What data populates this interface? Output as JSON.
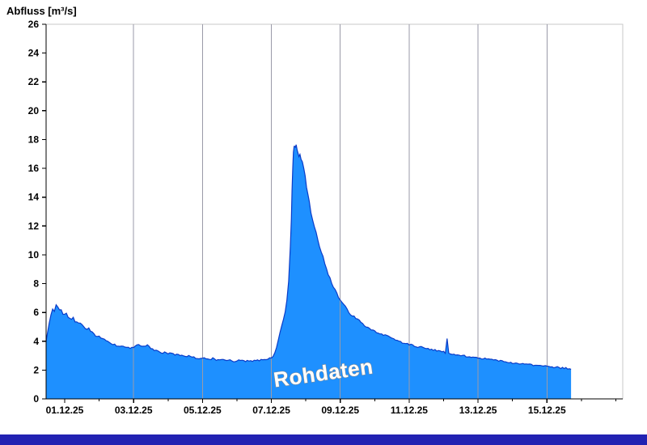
{
  "window": {
    "background": "#ffffff",
    "bottom_bar_color": "#2222b2"
  },
  "chart_data": {
    "type": "area",
    "title": "Abfluss [m³/s]",
    "watermark": "Rohdaten",
    "ylabel": "Abfluss [m³/s]",
    "xlabel": "",
    "ylim": [
      0,
      26
    ],
    "y_ticks": [
      0,
      2,
      4,
      6,
      8,
      10,
      12,
      14,
      16,
      18,
      20,
      22,
      24,
      26
    ],
    "x_domain": [
      0.46,
      17.2
    ],
    "x_ticks": [
      {
        "day": 1,
        "label": "01.12.25"
      },
      {
        "day": 3,
        "label": "03.12.25"
      },
      {
        "day": 5,
        "label": "05.12.25"
      },
      {
        "day": 7,
        "label": "07.12.25"
      },
      {
        "day": 9,
        "label": "09.12.25"
      },
      {
        "day": 11,
        "label": "11.12.25"
      },
      {
        "day": 13,
        "label": "13.12.25"
      },
      {
        "day": 15,
        "label": "15.12.25"
      }
    ],
    "grid": "vertical-only",
    "legend_position": "none",
    "colors": {
      "fill": "#1e90ff",
      "line": "#0a3cc8",
      "grid": "#9a9aa8",
      "frame": "#c9c9c9",
      "axis": "#000000",
      "watermark_fill": "#ffffff",
      "watermark_stroke": "#8c8c8c"
    },
    "series": {
      "name": "Abfluss Rohdaten",
      "unit": "m³/s",
      "points": [
        [
          0.46,
          4.0
        ],
        [
          0.5,
          4.6
        ],
        [
          0.55,
          5.3
        ],
        [
          0.6,
          5.9
        ],
        [
          0.65,
          6.3
        ],
        [
          0.7,
          6.1
        ],
        [
          0.75,
          6.6
        ],
        [
          0.8,
          6.3
        ],
        [
          0.85,
          6.1
        ],
        [
          0.9,
          6.2
        ],
        [
          0.95,
          5.9
        ],
        [
          1.0,
          5.8
        ],
        [
          1.05,
          5.9
        ],
        [
          1.1,
          5.7
        ],
        [
          1.15,
          5.6
        ],
        [
          1.2,
          5.5
        ],
        [
          1.25,
          5.6
        ],
        [
          1.3,
          5.4
        ],
        [
          1.35,
          5.3
        ],
        [
          1.4,
          5.2
        ],
        [
          1.45,
          5.3
        ],
        [
          1.5,
          5.1
        ],
        [
          1.55,
          5.0
        ],
        [
          1.6,
          4.9
        ],
        [
          1.65,
          4.8
        ],
        [
          1.7,
          4.9
        ],
        [
          1.75,
          4.7
        ],
        [
          1.8,
          4.6
        ],
        [
          1.85,
          4.5
        ],
        [
          1.9,
          4.4
        ],
        [
          1.95,
          4.4
        ],
        [
          2.0,
          4.3
        ],
        [
          2.1,
          4.2
        ],
        [
          2.2,
          4.0
        ],
        [
          2.3,
          3.9
        ],
        [
          2.4,
          3.8
        ],
        [
          2.5,
          3.7
        ],
        [
          2.6,
          3.6
        ],
        [
          2.7,
          3.7
        ],
        [
          2.8,
          3.6
        ],
        [
          2.9,
          3.5
        ],
        [
          3.0,
          3.6
        ],
        [
          3.05,
          3.7
        ],
        [
          3.1,
          3.8
        ],
        [
          3.2,
          3.7
        ],
        [
          3.3,
          3.6
        ],
        [
          3.4,
          3.7
        ],
        [
          3.5,
          3.5
        ],
        [
          3.6,
          3.4
        ],
        [
          3.7,
          3.3
        ],
        [
          3.8,
          3.2
        ],
        [
          3.9,
          3.2
        ],
        [
          4.0,
          3.1
        ],
        [
          4.1,
          3.2
        ],
        [
          4.2,
          3.0
        ],
        [
          4.3,
          3.1
        ],
        [
          4.4,
          3.0
        ],
        [
          4.5,
          2.9
        ],
        [
          4.6,
          3.0
        ],
        [
          4.7,
          2.9
        ],
        [
          4.8,
          2.85
        ],
        [
          4.9,
          2.8
        ],
        [
          5.0,
          2.85
        ],
        [
          5.1,
          2.8
        ],
        [
          5.2,
          2.75
        ],
        [
          5.3,
          2.8
        ],
        [
          5.4,
          2.7
        ],
        [
          5.5,
          2.75
        ],
        [
          5.6,
          2.7
        ],
        [
          5.7,
          2.65
        ],
        [
          5.8,
          2.7
        ],
        [
          5.9,
          2.6
        ],
        [
          6.0,
          2.65
        ],
        [
          6.1,
          2.7
        ],
        [
          6.2,
          2.6
        ],
        [
          6.3,
          2.65
        ],
        [
          6.4,
          2.6
        ],
        [
          6.5,
          2.7
        ],
        [
          6.6,
          2.65
        ],
        [
          6.7,
          2.7
        ],
        [
          6.8,
          2.75
        ],
        [
          6.9,
          2.8
        ],
        [
          7.0,
          2.85
        ],
        [
          7.05,
          3.0
        ],
        [
          7.1,
          3.2
        ],
        [
          7.15,
          3.6
        ],
        [
          7.2,
          4.1
        ],
        [
          7.25,
          4.6
        ],
        [
          7.3,
          5.1
        ],
        [
          7.35,
          5.5
        ],
        [
          7.4,
          6.0
        ],
        [
          7.45,
          6.8
        ],
        [
          7.5,
          8.2
        ],
        [
          7.55,
          10.5
        ],
        [
          7.58,
          12.5
        ],
        [
          7.6,
          14.5
        ],
        [
          7.62,
          16.0
        ],
        [
          7.64,
          17.0
        ],
        [
          7.66,
          17.5
        ],
        [
          7.68,
          17.6
        ],
        [
          7.7,
          17.4
        ],
        [
          7.72,
          17.5
        ],
        [
          7.75,
          17.2
        ],
        [
          7.78,
          17.0
        ],
        [
          7.8,
          16.9
        ],
        [
          7.83,
          17.0
        ],
        [
          7.86,
          16.7
        ],
        [
          7.9,
          16.4
        ],
        [
          7.94,
          16.0
        ],
        [
          7.98,
          15.4
        ],
        [
          8.02,
          14.8
        ],
        [
          8.06,
          14.2
        ],
        [
          8.1,
          13.6
        ],
        [
          8.15,
          13.0
        ],
        [
          8.2,
          12.4
        ],
        [
          8.25,
          12.0
        ],
        [
          8.3,
          11.5
        ],
        [
          8.35,
          11.0
        ],
        [
          8.4,
          10.6
        ],
        [
          8.45,
          10.2
        ],
        [
          8.5,
          9.8
        ],
        [
          8.55,
          9.4
        ],
        [
          8.6,
          9.0
        ],
        [
          8.65,
          8.7
        ],
        [
          8.7,
          8.4
        ],
        [
          8.75,
          8.1
        ],
        [
          8.8,
          7.8
        ],
        [
          8.85,
          7.6
        ],
        [
          8.9,
          7.3
        ],
        [
          8.95,
          7.1
        ],
        [
          9.0,
          6.9
        ],
        [
          9.05,
          6.7
        ],
        [
          9.1,
          6.5
        ],
        [
          9.15,
          6.4
        ],
        [
          9.2,
          6.2
        ],
        [
          9.3,
          5.9
        ],
        [
          9.4,
          5.7
        ],
        [
          9.5,
          5.5
        ],
        [
          9.6,
          5.3
        ],
        [
          9.7,
          5.1
        ],
        [
          9.8,
          5.0
        ],
        [
          9.9,
          4.8
        ],
        [
          10.0,
          4.7
        ],
        [
          10.1,
          4.6
        ],
        [
          10.2,
          4.5
        ],
        [
          10.3,
          4.4
        ],
        [
          10.4,
          4.3
        ],
        [
          10.5,
          4.2
        ],
        [
          10.6,
          4.1
        ],
        [
          10.7,
          4.0
        ],
        [
          10.8,
          3.9
        ],
        [
          10.9,
          3.85
        ],
        [
          11.0,
          3.8
        ],
        [
          11.1,
          3.7
        ],
        [
          11.2,
          3.65
        ],
        [
          11.3,
          3.6
        ],
        [
          11.4,
          3.55
        ],
        [
          11.5,
          3.5
        ],
        [
          11.6,
          3.45
        ],
        [
          11.7,
          3.4
        ],
        [
          11.8,
          3.35
        ],
        [
          11.9,
          3.3
        ],
        [
          12.0,
          3.25
        ],
        [
          12.05,
          3.2
        ],
        [
          12.1,
          4.2
        ],
        [
          12.15,
          3.15
        ],
        [
          12.2,
          3.1
        ],
        [
          12.3,
          3.1
        ],
        [
          12.4,
          3.05
        ],
        [
          12.5,
          3.0
        ],
        [
          12.6,
          3.0
        ],
        [
          12.7,
          2.95
        ],
        [
          12.8,
          2.9
        ],
        [
          12.9,
          2.9
        ],
        [
          13.0,
          2.85
        ],
        [
          13.1,
          2.8
        ],
        [
          13.2,
          2.8
        ],
        [
          13.3,
          2.75
        ],
        [
          13.4,
          2.7
        ],
        [
          13.5,
          2.7
        ],
        [
          13.6,
          2.65
        ],
        [
          13.7,
          2.6
        ],
        [
          13.8,
          2.6
        ],
        [
          13.9,
          2.55
        ],
        [
          14.0,
          2.5
        ],
        [
          14.1,
          2.5
        ],
        [
          14.2,
          2.45
        ],
        [
          14.3,
          2.45
        ],
        [
          14.4,
          2.4
        ],
        [
          14.5,
          2.4
        ],
        [
          14.6,
          2.35
        ],
        [
          14.7,
          2.35
        ],
        [
          14.8,
          2.3
        ],
        [
          14.9,
          2.3
        ],
        [
          15.0,
          2.25
        ],
        [
          15.1,
          2.25
        ],
        [
          15.2,
          2.2
        ],
        [
          15.3,
          2.2
        ],
        [
          15.4,
          2.15
        ],
        [
          15.5,
          2.15
        ],
        [
          15.6,
          2.1
        ],
        [
          15.7,
          2.05
        ]
      ]
    }
  }
}
